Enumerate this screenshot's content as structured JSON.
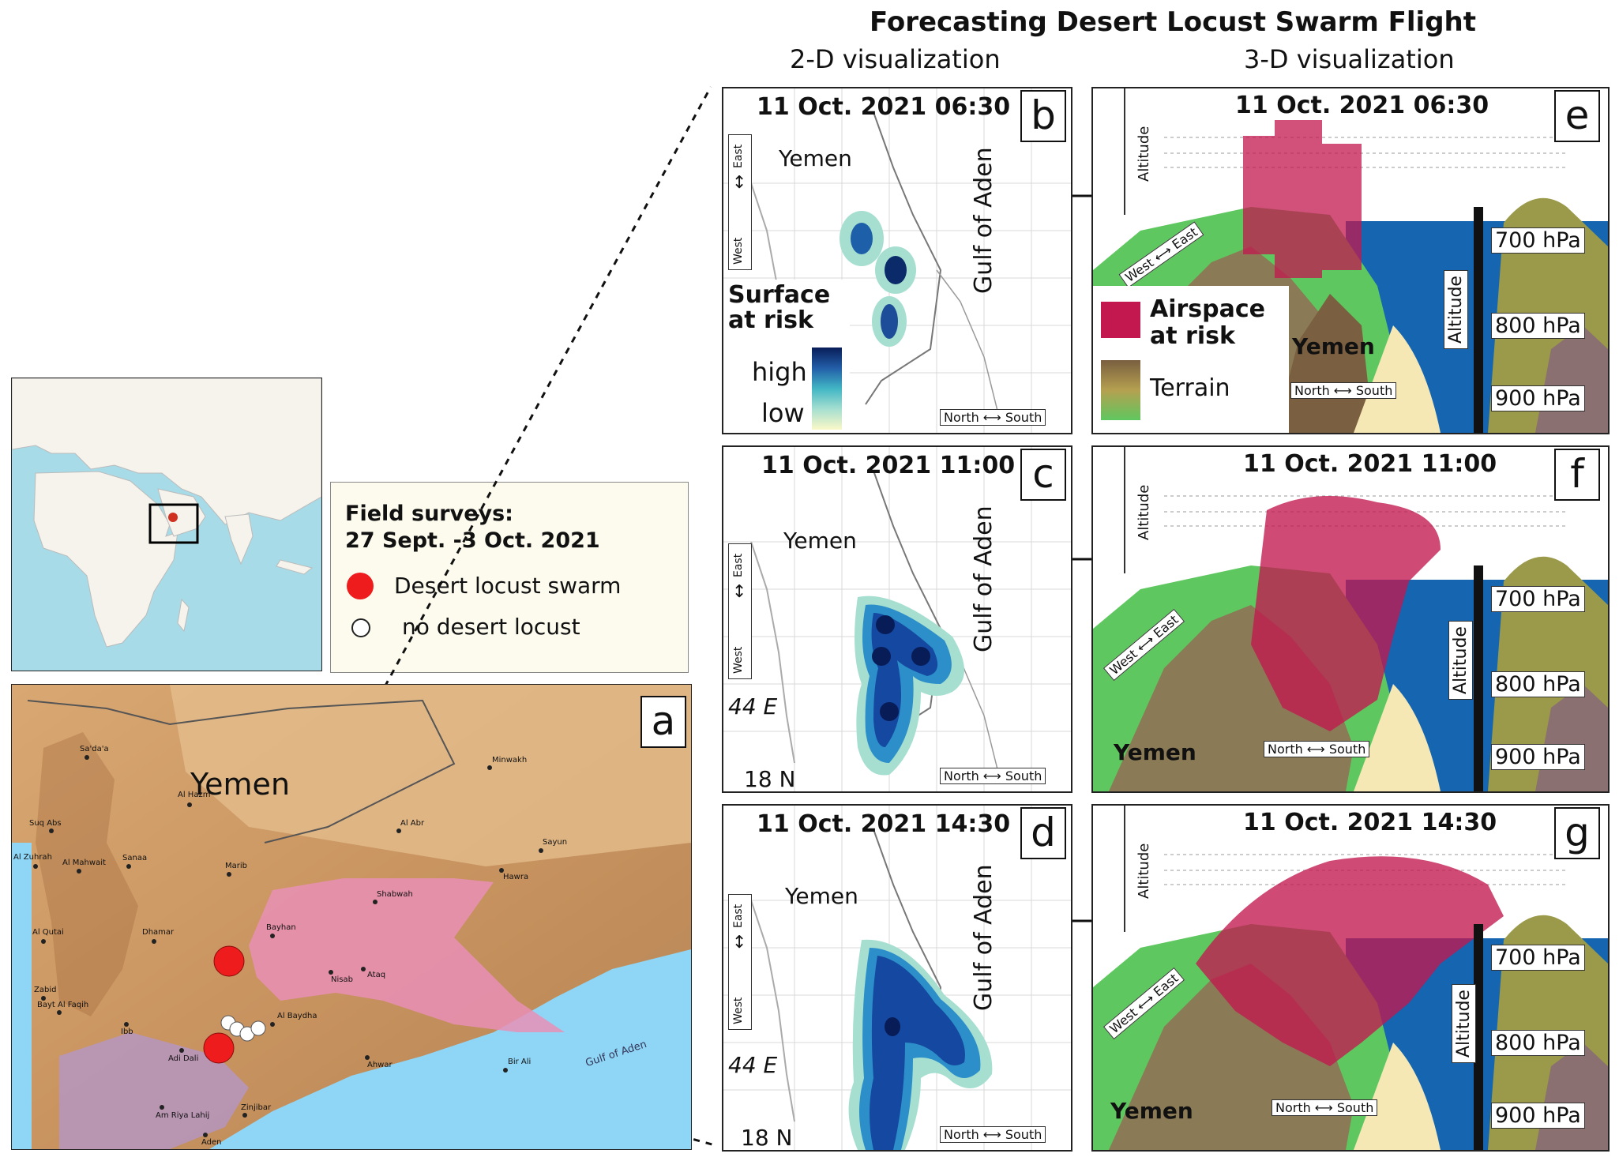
{
  "title": "Forecasting Desert Locust Swarm Flight",
  "subheads": {
    "two_d": "2-D visualization",
    "three_d": "3-D visualization"
  },
  "panel_a": {
    "letter": "a",
    "country": "Yemen",
    "sea": "Gulf of Aden",
    "towns": [
      "Sa'da'a",
      "Al Hazm",
      "Suq Abs",
      "Al Zuhrah",
      "Al Mahwait",
      "Sanaa",
      "Marib",
      "Al Qutai",
      "Dhamar",
      "Zabid",
      "Bayt Al Faqih",
      "Ibb",
      "Adi Dali",
      "Am Riya Lahij",
      "Zinjibar",
      "Aden",
      "Bayhan",
      "Nisab",
      "Ataq",
      "Al Baydha",
      "Shabwah",
      "Al Abr",
      "Minwakh",
      "Sayun",
      "Hawra",
      "Ahwar",
      "Bir Ali"
    ]
  },
  "field_surveys": {
    "title_line1": "Field surveys:",
    "title_line2": "27 Sept. -3 Oct. 2021",
    "items": [
      {
        "label": "Desert locust swarm",
        "color": "#ee1c1c"
      },
      {
        "label": "no desert locust",
        "color": "#ffffff"
      }
    ]
  },
  "panels_2d": [
    {
      "letter": "b",
      "time": "11 Oct. 2021 06:30",
      "country": "Yemen",
      "gulf": "Gulf of Aden",
      "compass_we": {
        "east": "East",
        "west": "West"
      },
      "compass_ns": {
        "north": "North",
        "south": "South"
      }
    },
    {
      "letter": "c",
      "time": "11 Oct. 2021 11:00",
      "country": "Yemen",
      "gulf": "Gulf of Aden",
      "lon": "44 E",
      "lat": "18 N",
      "compass_we": {
        "east": "East",
        "west": "West"
      },
      "compass_ns": {
        "north": "North",
        "south": "South"
      }
    },
    {
      "letter": "d",
      "time": "11 Oct. 2021 14:30",
      "country": "Yemen",
      "gulf": "Gulf of Aden",
      "lon": "44 E",
      "lat": "18 N",
      "compass_we": {
        "east": "East",
        "west": "West"
      },
      "compass_ns": {
        "north": "North",
        "south": "South"
      }
    }
  ],
  "surface_legend": {
    "line1": "Surface",
    "line2": "at risk",
    "high": "high",
    "low": "low",
    "colors": [
      "#fbf8c8",
      "#cbe9b8",
      "#7fcdbb",
      "#41b6c4",
      "#1d91c0",
      "#225ea8",
      "#253494",
      "#081d58"
    ]
  },
  "panels_3d": [
    {
      "letter": "e",
      "time": "11 Oct. 2021 06:30",
      "country": "Yemen",
      "altitude": "Altitude",
      "east": "East",
      "west": "West",
      "north": "North",
      "south": "South",
      "levels": [
        "700 hPa",
        "800 hPa",
        "900 hPa"
      ]
    },
    {
      "letter": "f",
      "time": "11 Oct. 2021 11:00",
      "country": "Yemen",
      "altitude": "Altitude",
      "east": "East",
      "west": "West",
      "north": "North",
      "south": "South",
      "levels": [
        "700 hPa",
        "800 hPa",
        "900 hPa"
      ]
    },
    {
      "letter": "g",
      "time": "11 Oct. 2021 14:30",
      "country": "Yemen",
      "altitude": "Altitude",
      "east": "East",
      "west": "West",
      "north": "North",
      "south": "South",
      "levels": [
        "700 hPa",
        "800 hPa",
        "900 hPa"
      ]
    }
  ],
  "airspace_legend": {
    "line1": "Airspace",
    "line2": "at risk",
    "terrain": "Terrain",
    "airspace_color": "#c2184f"
  },
  "colors": {
    "sea": "#8fd6f6",
    "risk_zone": "#e98fb6",
    "swarm": "#ee1c1c"
  }
}
